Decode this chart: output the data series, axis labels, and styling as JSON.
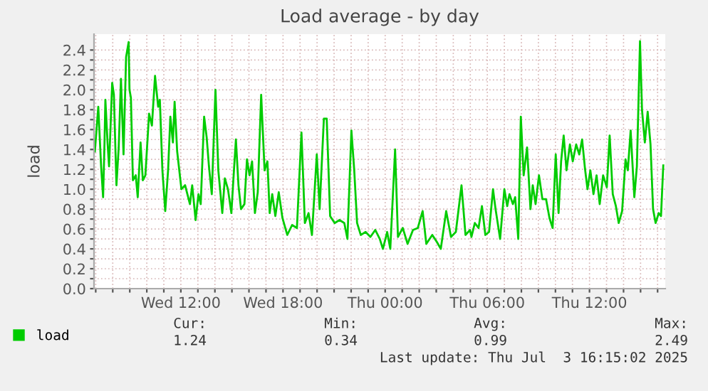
{
  "chart_data": {
    "type": "line",
    "title": "Load average - by day",
    "ylabel": "load",
    "series": [
      {
        "name": "load",
        "color": "#00cc00",
        "x": [
          "2025-07-02T06:57",
          "2025-07-02T07:09",
          "2025-07-02T07:19",
          "2025-07-02T07:26",
          "2025-07-02T07:31",
          "2025-07-02T07:34",
          "2025-07-02T07:42",
          "2025-07-02T07:47",
          "2025-07-02T07:58",
          "2025-07-02T08:04",
          "2025-07-02T08:13",
          "2025-07-02T08:21",
          "2025-07-02T08:29",
          "2025-07-02T08:38",
          "2025-07-02T08:47",
          "2025-07-02T08:56",
          "2025-07-02T08:59",
          "2025-07-02T09:04",
          "2025-07-02T09:11",
          "2025-07-02T09:21",
          "2025-07-02T09:28",
          "2025-07-02T09:38",
          "2025-07-02T09:46",
          "2025-07-02T09:55",
          "2025-07-02T10:08",
          "2025-07-02T10:18",
          "2025-07-02T10:29",
          "2025-07-02T10:40",
          "2025-07-02T10:46",
          "2025-07-02T10:55",
          "2025-07-02T11:05",
          "2025-07-02T11:15",
          "2025-07-02T11:23",
          "2025-07-02T11:32",
          "2025-07-02T11:38",
          "2025-07-02T11:47",
          "2025-07-02T12:02",
          "2025-07-02T12:15",
          "2025-07-02T12:23",
          "2025-07-02T12:32",
          "2025-07-02T12:40",
          "2025-07-02T12:52",
          "2025-07-02T13:02",
          "2025-07-02T13:10",
          "2025-07-02T13:22",
          "2025-07-02T13:31",
          "2025-07-02T13:39",
          "2025-07-02T13:49",
          "2025-07-02T14:02",
          "2025-07-02T14:12",
          "2025-07-02T14:26",
          "2025-07-02T14:35",
          "2025-07-02T14:46",
          "2025-07-02T14:58",
          "2025-07-02T15:06",
          "2025-07-02T15:14",
          "2025-07-02T15:23",
          "2025-07-02T15:32",
          "2025-07-02T15:44",
          "2025-07-02T15:53",
          "2025-07-02T16:02",
          "2025-07-02T16:11",
          "2025-07-02T16:21",
          "2025-07-02T16:31",
          "2025-07-02T16:43",
          "2025-07-02T16:55",
          "2025-07-02T17:05",
          "2025-07-02T17:13",
          "2025-07-02T17:22",
          "2025-07-02T17:33",
          "2025-07-02T17:45",
          "2025-07-02T17:58",
          "2025-07-02T18:15",
          "2025-07-02T18:32",
          "2025-07-02T18:49",
          "2025-07-02T19:05",
          "2025-07-02T19:17",
          "2025-07-02T19:30",
          "2025-07-02T19:42",
          "2025-07-02T19:59",
          "2025-07-02T20:09",
          "2025-07-02T20:24",
          "2025-07-02T20:34",
          "2025-07-02T20:46",
          "2025-07-02T21:02",
          "2025-07-02T21:19",
          "2025-07-02T21:36",
          "2025-07-02T21:47",
          "2025-07-02T22:01",
          "2025-07-02T22:11",
          "2025-07-02T22:21",
          "2025-07-02T22:34",
          "2025-07-02T22:51",
          "2025-07-02T23:08",
          "2025-07-02T23:25",
          "2025-07-02T23:41",
          "2025-07-02T23:52",
          "2025-07-03T00:07",
          "2025-07-03T00:18",
          "2025-07-03T00:35",
          "2025-07-03T00:45",
          "2025-07-03T01:02",
          "2025-07-03T01:19",
          "2025-07-03T01:38",
          "2025-07-03T01:55",
          "2025-07-03T02:12",
          "2025-07-03T02:25",
          "2025-07-03T02:46",
          "2025-07-03T03:02",
          "2025-07-03T03:16",
          "2025-07-03T03:35",
          "2025-07-03T03:52",
          "2025-07-03T04:09",
          "2025-07-03T04:29",
          "2025-07-03T04:43",
          "2025-07-03T04:59",
          "2025-07-03T05:04",
          "2025-07-03T05:16",
          "2025-07-03T05:29",
          "2025-07-03T05:41",
          "2025-07-03T05:53",
          "2025-07-03T06:06",
          "2025-07-03T06:20",
          "2025-07-03T06:29",
          "2025-07-03T06:45",
          "2025-07-03T07:00",
          "2025-07-03T07:10",
          "2025-07-03T07:18",
          "2025-07-03T07:30",
          "2025-07-03T07:38",
          "2025-07-03T07:49",
          "2025-07-03T07:58",
          "2025-07-03T08:08",
          "2025-07-03T08:20",
          "2025-07-03T08:32",
          "2025-07-03T08:40",
          "2025-07-03T08:50",
          "2025-07-03T09:02",
          "2025-07-03T09:14",
          "2025-07-03T09:27",
          "2025-07-03T09:39",
          "2025-07-03T09:50",
          "2025-07-03T10:01",
          "2025-07-03T10:11",
          "2025-07-03T10:20",
          "2025-07-03T10:29",
          "2025-07-03T10:39",
          "2025-07-03T10:51",
          "2025-07-03T11:01",
          "2025-07-03T11:13",
          "2025-07-03T11:24",
          "2025-07-03T11:34",
          "2025-07-03T11:44",
          "2025-07-03T11:53",
          "2025-07-03T12:03",
          "2025-07-03T12:14",
          "2025-07-03T12:25",
          "2025-07-03T12:36",
          "2025-07-03T12:48",
          "2025-07-03T13:01",
          "2025-07-03T13:11",
          "2025-07-03T13:22",
          "2025-07-03T13:33",
          "2025-07-03T13:43",
          "2025-07-03T13:55",
          "2025-07-03T14:07",
          "2025-07-03T14:15",
          "2025-07-03T14:25",
          "2025-07-03T14:38",
          "2025-07-03T14:47",
          "2025-07-03T14:58",
          "2025-07-03T15:05",
          "2025-07-03T15:15",
          "2025-07-03T15:25",
          "2025-07-03T15:35",
          "2025-07-03T15:44",
          "2025-07-03T15:53",
          "2025-07-03T16:04",
          "2025-07-03T16:12",
          "2025-07-03T16:20"
        ],
        "values": [
          1.38,
          1.83,
          1.23,
          0.92,
          1.47,
          1.9,
          1.45,
          1.23,
          2.07,
          1.95,
          1.04,
          1.42,
          2.11,
          1.35,
          2.33,
          2.48,
          2.0,
          1.92,
          1.09,
          1.14,
          0.92,
          1.47,
          1.09,
          1.14,
          1.76,
          1.64,
          2.14,
          1.83,
          1.9,
          1.19,
          0.78,
          1.19,
          1.73,
          1.47,
          1.88,
          1.38,
          1.0,
          1.04,
          0.95,
          0.85,
          1.04,
          0.69,
          0.95,
          0.85,
          1.73,
          1.52,
          1.23,
          0.95,
          2.0,
          1.19,
          0.76,
          1.11,
          1.0,
          0.76,
          1.14,
          1.5,
          1.04,
          0.8,
          0.85,
          1.3,
          1.14,
          1.28,
          0.76,
          0.97,
          1.95,
          1.19,
          1.28,
          0.76,
          0.95,
          0.73,
          0.97,
          0.71,
          0.54,
          0.64,
          0.61,
          1.57,
          0.66,
          0.76,
          0.54,
          1.35,
          0.8,
          1.71,
          1.71,
          0.73,
          0.66,
          0.69,
          0.66,
          0.5,
          1.59,
          1.19,
          0.66,
          0.54,
          0.57,
          0.52,
          0.59,
          0.5,
          0.4,
          0.57,
          0.4,
          1.4,
          0.52,
          0.61,
          0.45,
          0.59,
          0.61,
          0.78,
          0.45,
          0.54,
          0.47,
          0.4,
          0.78,
          0.52,
          0.57,
          1.04,
          0.54,
          0.59,
          0.52,
          0.66,
          0.61,
          0.83,
          0.54,
          0.57,
          1.0,
          0.8,
          0.5,
          1.0,
          0.83,
          0.95,
          0.85,
          0.92,
          0.5,
          1.73,
          1.14,
          1.42,
          0.8,
          1.04,
          0.85,
          1.14,
          0.9,
          0.9,
          0.71,
          0.61,
          1.35,
          0.76,
          1.28,
          1.54,
          1.19,
          1.45,
          1.28,
          1.45,
          1.35,
          1.5,
          1.21,
          1.0,
          1.19,
          0.95,
          1.14,
          0.85,
          1.14,
          1.02,
          1.54,
          0.95,
          0.83,
          0.66,
          0.78,
          1.3,
          1.19,
          1.59,
          0.92,
          1.23,
          2.49,
          1.8,
          1.47,
          1.78,
          1.45,
          0.8,
          0.66,
          0.76,
          0.73,
          1.24
        ]
      }
    ],
    "xlim": [
      "2025-07-02T06:54",
      "2025-07-03T16:27"
    ],
    "xticks": [
      {
        "value": "2025-07-02T07:00",
        "label": null
      },
      {
        "value": "2025-07-02T08:00",
        "label": null
      },
      {
        "value": "2025-07-02T09:00",
        "label": null
      },
      {
        "value": "2025-07-02T10:00",
        "label": null
      },
      {
        "value": "2025-07-02T11:00",
        "label": null
      },
      {
        "value": "2025-07-02T12:00",
        "label": "Wed 12:00"
      },
      {
        "value": "2025-07-02T13:00",
        "label": null
      },
      {
        "value": "2025-07-02T14:00",
        "label": null
      },
      {
        "value": "2025-07-02T15:00",
        "label": null
      },
      {
        "value": "2025-07-02T16:00",
        "label": null
      },
      {
        "value": "2025-07-02T17:00",
        "label": null
      },
      {
        "value": "2025-07-02T18:00",
        "label": "Wed 18:00"
      },
      {
        "value": "2025-07-02T19:00",
        "label": null
      },
      {
        "value": "2025-07-02T20:00",
        "label": null
      },
      {
        "value": "2025-07-02T21:00",
        "label": null
      },
      {
        "value": "2025-07-02T22:00",
        "label": null
      },
      {
        "value": "2025-07-02T23:00",
        "label": null
      },
      {
        "value": "2025-07-03T00:00",
        "label": "Thu 00:00"
      },
      {
        "value": "2025-07-03T01:00",
        "label": null
      },
      {
        "value": "2025-07-03T02:00",
        "label": null
      },
      {
        "value": "2025-07-03T03:00",
        "label": null
      },
      {
        "value": "2025-07-03T04:00",
        "label": null
      },
      {
        "value": "2025-07-03T05:00",
        "label": null
      },
      {
        "value": "2025-07-03T06:00",
        "label": "Thu 06:00"
      },
      {
        "value": "2025-07-03T07:00",
        "label": null
      },
      {
        "value": "2025-07-03T08:00",
        "label": null
      },
      {
        "value": "2025-07-03T09:00",
        "label": null
      },
      {
        "value": "2025-07-03T10:00",
        "label": null
      },
      {
        "value": "2025-07-03T11:00",
        "label": null
      },
      {
        "value": "2025-07-03T12:00",
        "label": "Thu 12:00"
      },
      {
        "value": "2025-07-03T13:00",
        "label": null
      },
      {
        "value": "2025-07-03T14:00",
        "label": null
      },
      {
        "value": "2025-07-03T15:00",
        "label": null
      },
      {
        "value": "2025-07-03T16:00",
        "label": null
      }
    ],
    "ylim": [
      0,
      2.56
    ],
    "yticks": [
      {
        "value": 0,
        "label": "0.0"
      },
      {
        "value": 0.1,
        "label": null
      },
      0.2,
      {
        "value": 0.3,
        "label": null
      },
      0.4,
      {
        "value": 0.5,
        "label": null
      },
      0.6,
      {
        "value": 0.7,
        "label": null
      },
      0.8,
      {
        "value": 0.9,
        "label": null
      },
      {
        "value": 1,
        "label": "1.0"
      },
      {
        "value": 1.1,
        "label": null
      },
      1.2,
      {
        "value": 1.3,
        "label": null
      },
      1.4,
      {
        "value": 1.5,
        "label": null
      },
      1.6,
      {
        "value": 1.7,
        "label": null
      },
      1.8,
      {
        "value": 1.9,
        "label": null
      },
      {
        "value": 2,
        "label": "2.0"
      },
      {
        "value": 2.1,
        "label": null
      },
      2.2,
      {
        "value": 2.3,
        "label": null
      },
      2.4
    ],
    "grid": true,
    "legend": "bottom left",
    "line_style": "solid",
    "annotations": [
      "Cur:",
      "Min:",
      "Avg:",
      "Max:",
      "1.24",
      "0.34",
      "0.99",
      "2.49",
      "Last update: Thu Jul  3 16:15:02 2025"
    ]
  }
}
